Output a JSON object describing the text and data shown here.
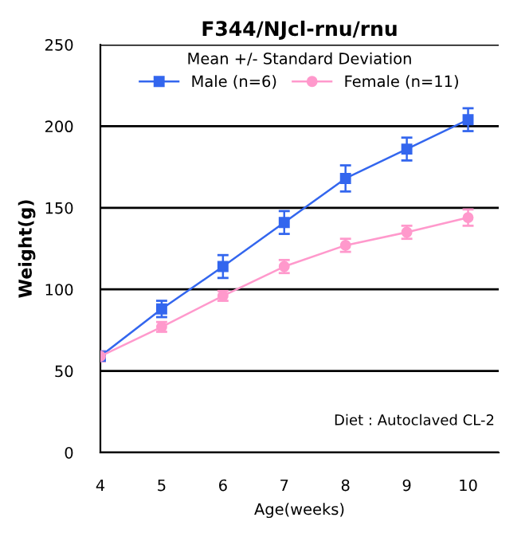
{
  "chart_data": {
    "type": "line",
    "title": "F344/NJcl-rnu/rnu",
    "xlabel": "Age(weeks)",
    "ylabel": "Weight(g)",
    "legend_title": "Mean +/- Standard Deviation",
    "legend": "top",
    "x": [
      4,
      5,
      6,
      7,
      8,
      9,
      10
    ],
    "series": [
      {
        "name": "Male (n=6)",
        "color": "#3366ee",
        "marker": "square",
        "values": [
          59,
          88,
          114,
          141,
          168,
          186,
          204
        ],
        "errors": [
          3,
          5,
          7,
          7,
          8,
          7,
          7
        ]
      },
      {
        "name": "Female (n=11)",
        "color": "#ff99cc",
        "marker": "circle",
        "values": [
          59,
          77,
          96,
          114,
          127,
          135,
          144
        ],
        "errors": [
          3,
          3,
          3,
          4,
          4,
          4,
          5
        ]
      }
    ],
    "xlim": [
      4,
      10.5
    ],
    "xticks": [
      4,
      5,
      6,
      7,
      8,
      9,
      10
    ],
    "ylim": [
      0,
      250
    ],
    "yticks": [
      0,
      50,
      100,
      150,
      200,
      250
    ],
    "grid": "y",
    "line_style": "solid",
    "annotations": [
      "Diet : Autoclaved CL-2"
    ]
  }
}
